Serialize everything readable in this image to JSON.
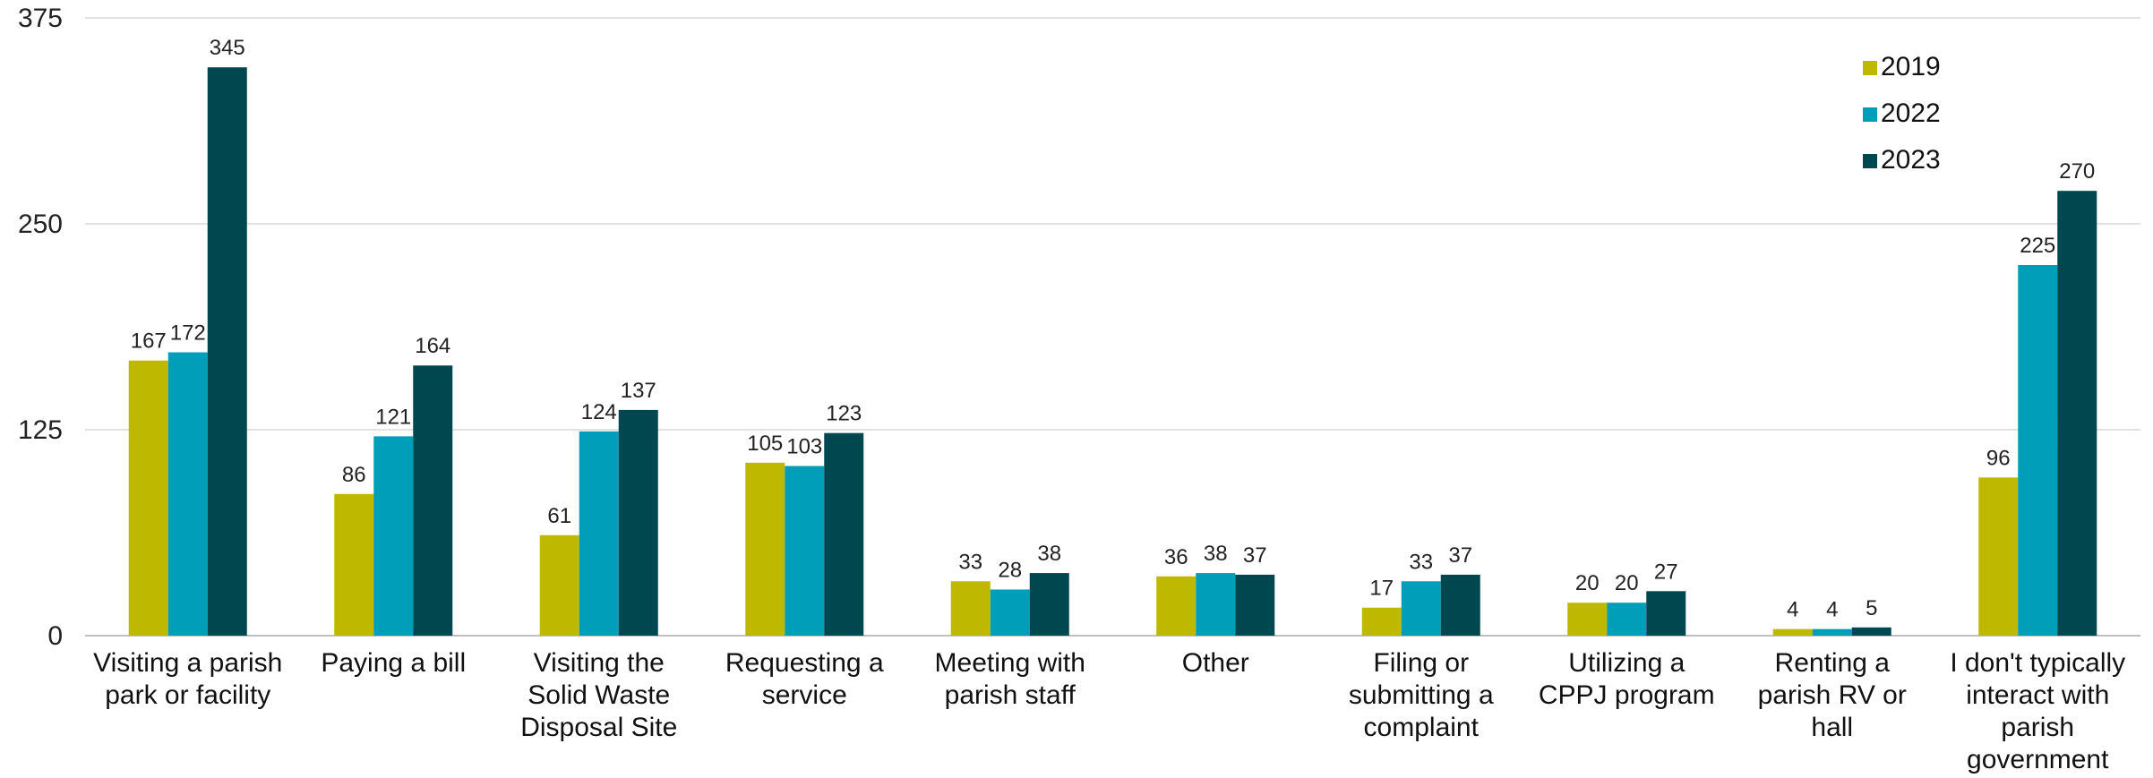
{
  "chart_data": {
    "type": "bar",
    "categories": [
      [
        "Visiting a parish",
        "park or facility"
      ],
      [
        "Paying a bill"
      ],
      [
        "Visiting the",
        "Solid Waste",
        "Disposal Site"
      ],
      [
        "Requesting a",
        "service"
      ],
      [
        "Meeting with",
        "parish staff"
      ],
      [
        "Other"
      ],
      [
        "Filing or",
        "submitting a",
        "complaint"
      ],
      [
        "Utilizing a",
        "CPPJ program"
      ],
      [
        "Renting a",
        "parish RV or",
        "hall"
      ],
      [
        "I don't typically",
        "interact with",
        "parish",
        "government"
      ]
    ],
    "series": [
      {
        "name": "2019",
        "color": "#BFB800",
        "values": [
          167,
          86,
          61,
          105,
          33,
          36,
          17,
          20,
          4,
          96
        ]
      },
      {
        "name": "2022",
        "color": "#009EB8",
        "values": [
          172,
          121,
          124,
          103,
          28,
          38,
          33,
          20,
          4,
          225
        ]
      },
      {
        "name": "2023",
        "color": "#00474F",
        "values": [
          345,
          164,
          137,
          123,
          38,
          37,
          37,
          27,
          5,
          270
        ]
      }
    ],
    "ylim": [
      0,
      375
    ],
    "yticks": [
      0,
      125,
      250,
      375
    ],
    "grid": true,
    "legend_position": "top-right"
  }
}
